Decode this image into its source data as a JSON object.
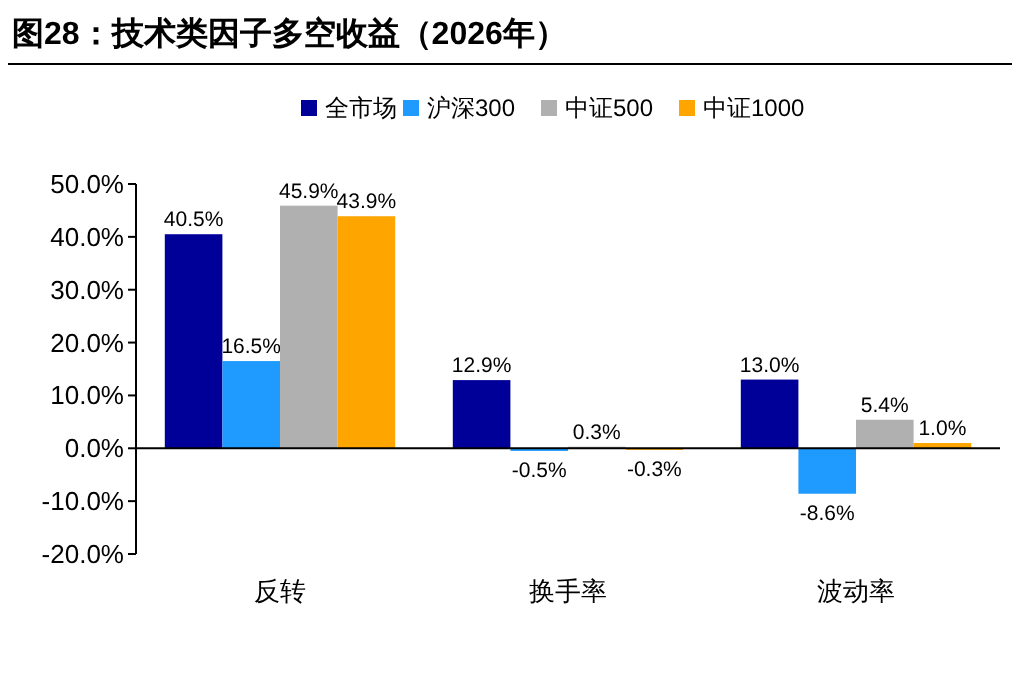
{
  "chart_data": {
    "type": "bar",
    "title": "图28：技术类因子多空收益（2026年）",
    "categories": [
      "反转",
      "换手率",
      "波动率"
    ],
    "series": [
      {
        "name": "全市场",
        "color": "#000099",
        "values": [
          40.5,
          12.9,
          13.0
        ],
        "value_labels": [
          "40.5%",
          "12.9%",
          "13.0%"
        ]
      },
      {
        "name": "沪深300",
        "color": "#1f9bff",
        "values": [
          16.5,
          -0.5,
          -8.6
        ],
        "value_labels": [
          "16.5%",
          "-0.5%",
          "-8.6%"
        ]
      },
      {
        "name": "中证500",
        "color": "#b0b0b0",
        "values": [
          45.9,
          0.3,
          5.4
        ],
        "value_labels": [
          "45.9%",
          "0.3%",
          "5.4%"
        ]
      },
      {
        "name": "中证1000",
        "color": "#ffa500",
        "values": [
          43.9,
          -0.3,
          1.0
        ],
        "value_labels": [
          "43.9%",
          "-0.3%",
          "1.0%"
        ]
      }
    ],
    "ylim": [
      -20,
      50
    ],
    "yticks": [
      {
        "value": -20,
        "label": "-20.0%"
      },
      {
        "value": -10,
        "label": "-10.0%"
      },
      {
        "value": 0,
        "label": "0.0%"
      },
      {
        "value": 10,
        "label": "10.0%"
      },
      {
        "value": 20,
        "label": "20.0%"
      },
      {
        "value": 30,
        "label": "30.0%"
      },
      {
        "value": 40,
        "label": "40.0%"
      },
      {
        "value": 50,
        "label": "50.0%"
      }
    ],
    "legend": "top"
  }
}
